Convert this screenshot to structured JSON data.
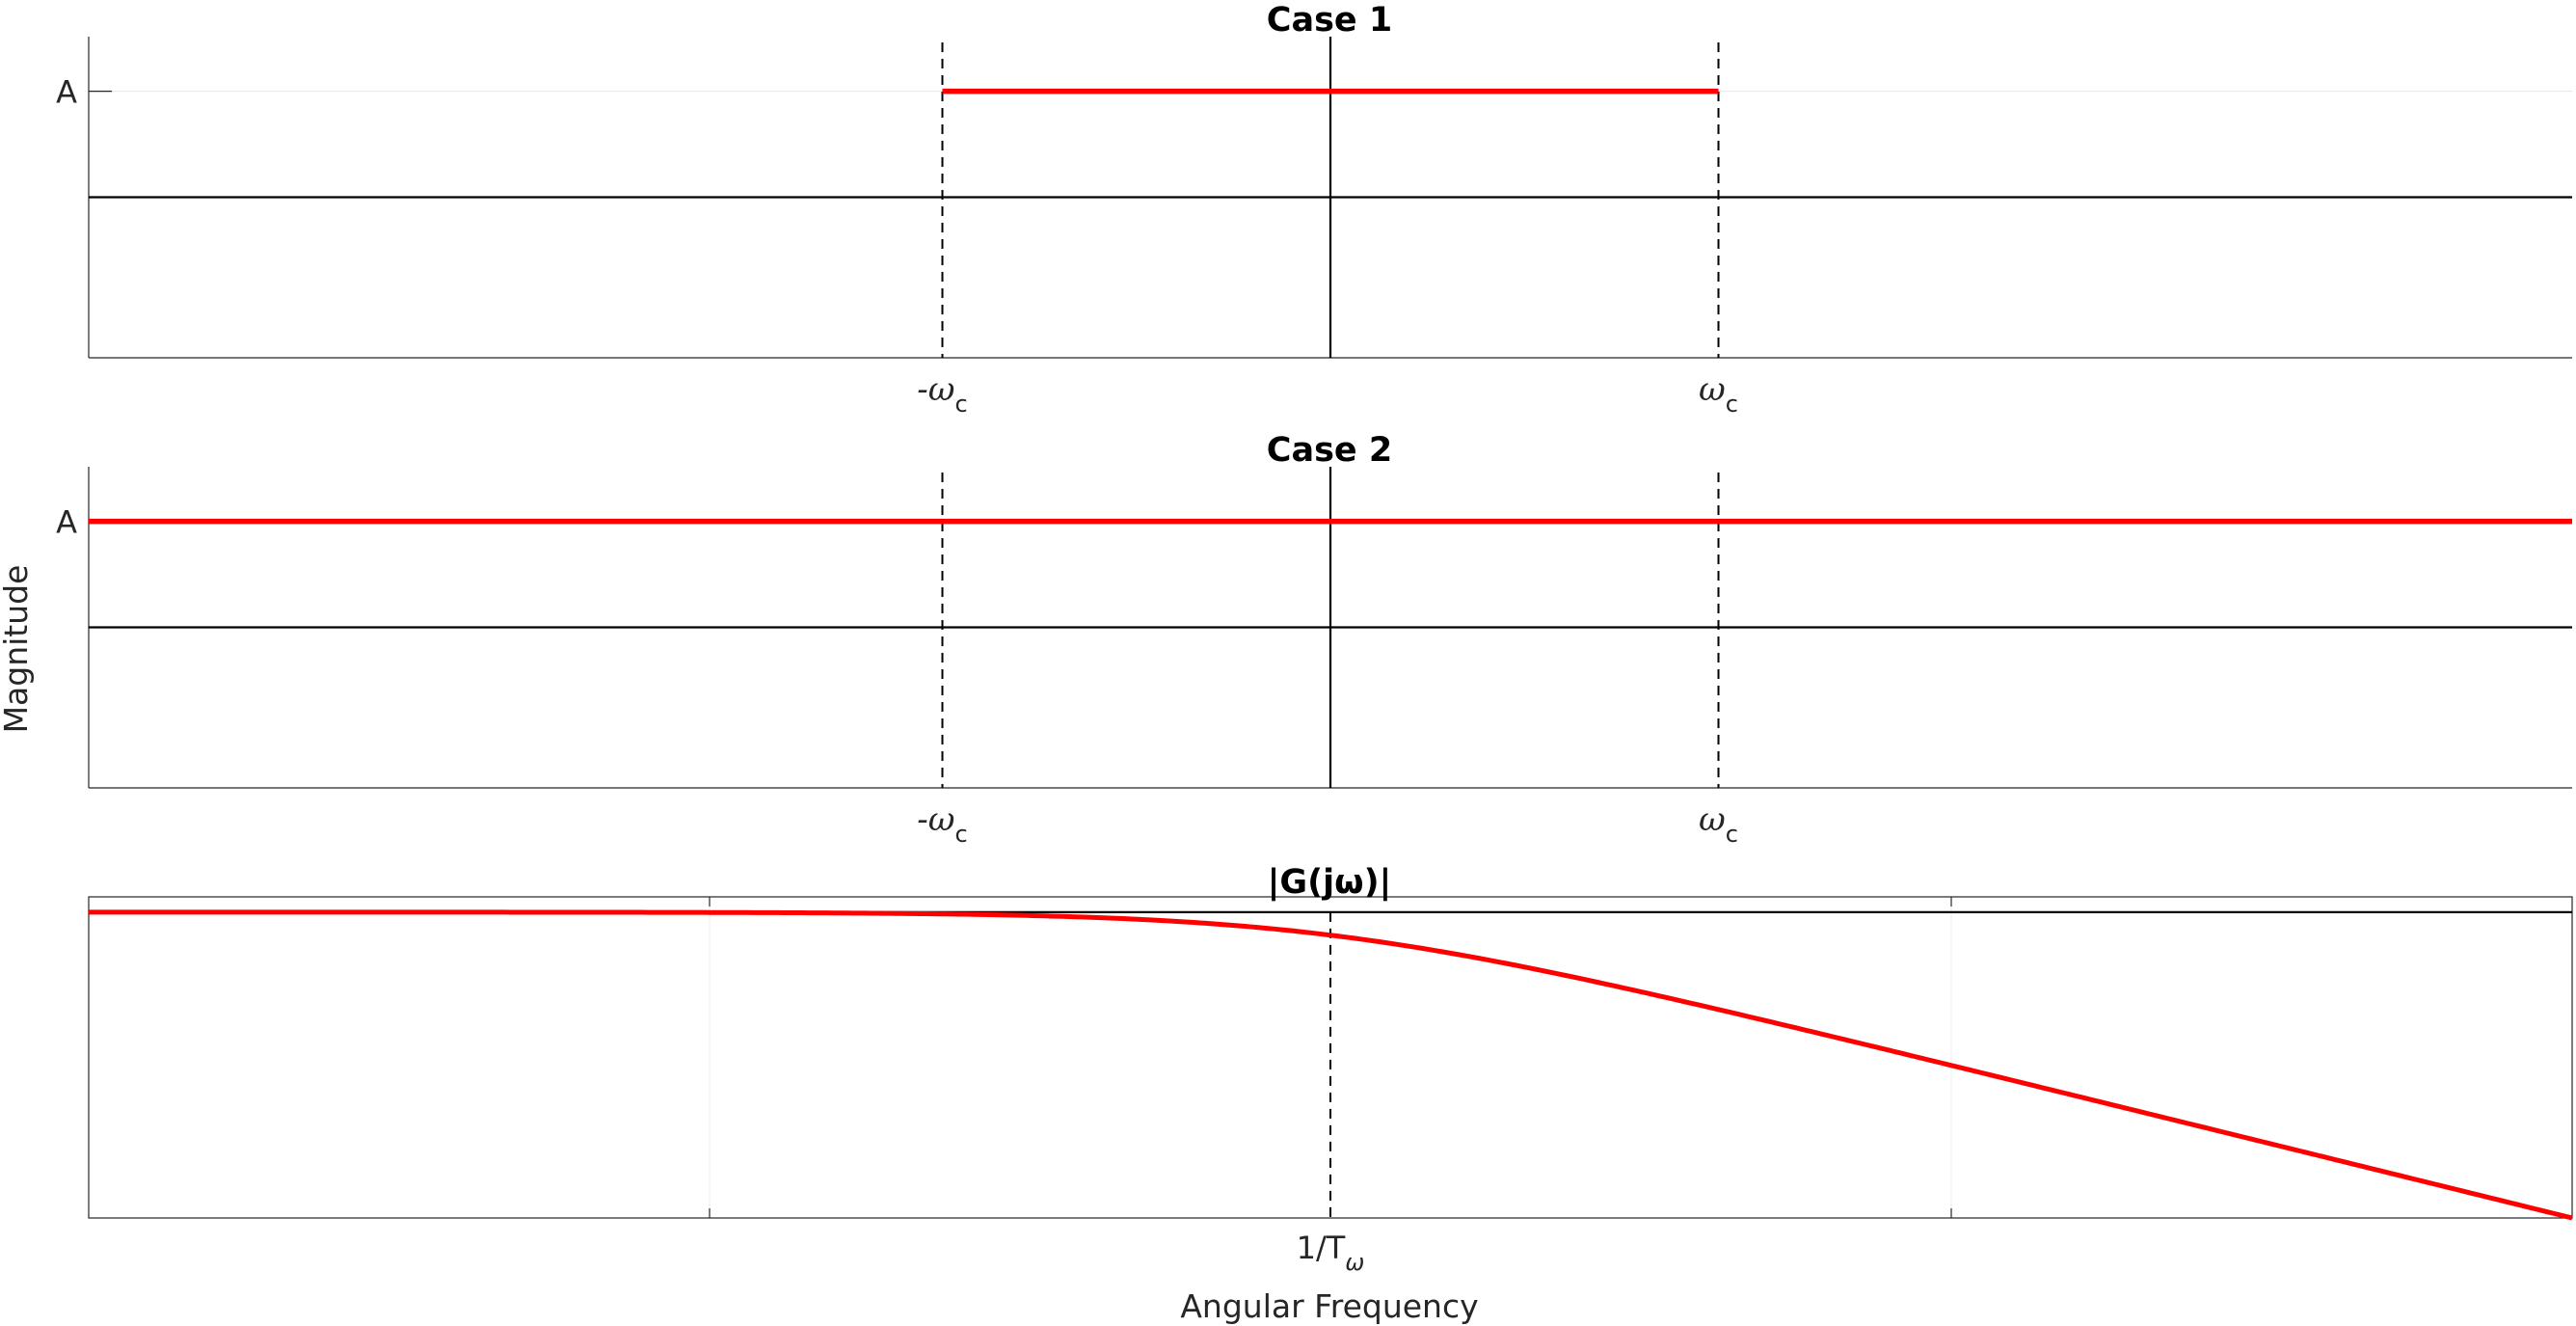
{
  "chart_data": [
    {
      "type": "line",
      "title": "Case 1",
      "ytick_label": "A",
      "xtick_labels": [
        "-ω",
        "ω"
      ],
      "xtick_subscript": "c",
      "xlim": [
        -1.6,
        1.6
      ],
      "ylim": [
        -1,
        1
      ],
      "grid": true,
      "series": [
        {
          "x": [
            -0.5,
            0.5
          ],
          "y": [
            0.66,
            0.66
          ],
          "color": "#ff0000"
        }
      ],
      "markers": [
        -0.5,
        0.5
      ]
    },
    {
      "type": "line",
      "title": "Case 2",
      "ytick_label": "A",
      "xtick_labels": [
        "-ω",
        "ω"
      ],
      "xtick_subscript": "c",
      "xlim": [
        -1.6,
        1.6
      ],
      "ylim": [
        -1,
        1
      ],
      "grid": true,
      "series": [
        {
          "x": [
            -1.6,
            1.6
          ],
          "y": [
            0.66,
            0.66
          ],
          "color": "#ff0000"
        }
      ],
      "markers": [
        -0.5,
        0.5
      ]
    },
    {
      "type": "line",
      "title": "|G(jω)|",
      "xtick_label": "1/T",
      "xtick_subscript": "ω",
      "xlabel": "Angular Frequency",
      "x_scale": "log",
      "xlim": [
        0.01,
        100
      ],
      "ylim": [
        -40,
        2
      ],
      "grid": true,
      "series": [
        {
          "name": "|G(jω)|",
          "function": "20*log10(1/sqrt(1+x^2))",
          "color": "#ff0000"
        }
      ],
      "marker": 1
    }
  ],
  "ylabel": "Magnitude"
}
